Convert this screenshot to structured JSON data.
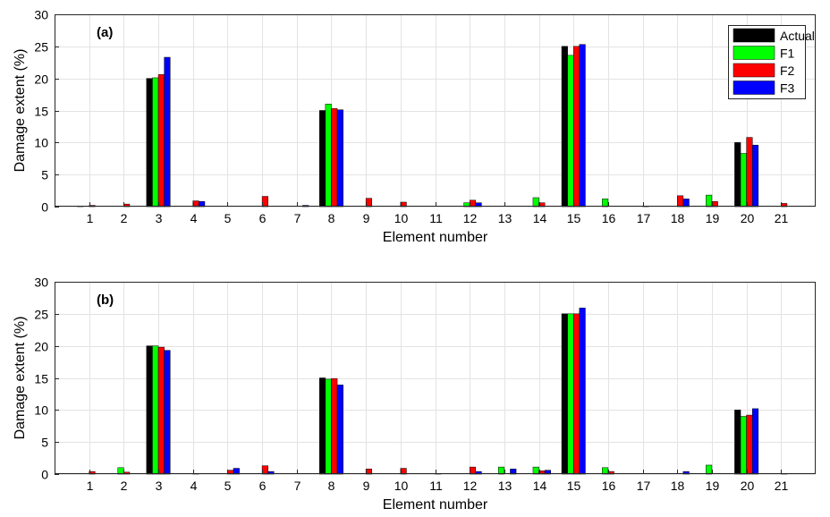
{
  "chart_data": [
    {
      "type": "bar",
      "panel_label": "(a)",
      "xlabel": "Element number",
      "ylabel": "Damage extent (%)",
      "ylim": [
        0,
        30
      ],
      "yticks": [
        0,
        5,
        10,
        15,
        20,
        25,
        30
      ],
      "grid": true,
      "legend": "top-right",
      "categories": [
        "1",
        "2",
        "3",
        "4",
        "5",
        "6",
        "7",
        "8",
        "9",
        "10",
        "11",
        "12",
        "13",
        "14",
        "15",
        "16",
        "17",
        "18",
        "19",
        "20",
        "21"
      ],
      "series": [
        {
          "name": "Actual",
          "color": "#000000",
          "values": [
            0.1,
            0,
            20,
            0,
            0,
            0,
            0,
            15,
            0,
            0,
            0,
            0,
            0,
            0,
            25,
            0,
            0,
            0,
            0,
            10,
            0
          ]
        },
        {
          "name": "F1",
          "color": "#00ff00",
          "values": [
            0,
            0,
            20.1,
            0,
            0,
            0,
            0,
            16,
            0,
            0,
            0,
            0.6,
            0,
            1.4,
            23.6,
            1.2,
            0,
            0,
            1.8,
            8.3,
            0
          ]
        },
        {
          "name": "F2",
          "color": "#ff0000",
          "values": [
            0.2,
            0.4,
            20.6,
            0.9,
            0,
            1.6,
            0,
            15.3,
            1.3,
            0.7,
            0,
            1.0,
            0,
            0.6,
            25,
            0,
            0.1,
            1.7,
            0.8,
            10.8,
            0.5
          ]
        },
        {
          "name": "F3",
          "color": "#0000ff",
          "values": [
            0,
            0,
            23.3,
            0.8,
            0,
            0,
            0.2,
            15.1,
            0,
            0,
            0,
            0.6,
            0,
            0,
            25.3,
            0,
            0,
            1.2,
            0,
            9.6,
            0
          ]
        }
      ]
    },
    {
      "type": "bar",
      "panel_label": "(b)",
      "xlabel": "Element number",
      "ylabel": "Damage extent (%)",
      "ylim": [
        0,
        30
      ],
      "yticks": [
        0,
        5,
        10,
        15,
        20,
        25,
        30
      ],
      "grid": true,
      "categories": [
        "1",
        "2",
        "3",
        "4",
        "5",
        "6",
        "7",
        "8",
        "9",
        "10",
        "11",
        "12",
        "13",
        "14",
        "15",
        "16",
        "17",
        "18",
        "19",
        "20",
        "21"
      ],
      "series": [
        {
          "name": "Actual",
          "color": "#000000",
          "values": [
            0,
            0,
            20,
            0,
            0,
            0,
            0,
            15,
            0,
            0,
            0,
            0,
            0,
            0,
            25,
            0,
            0,
            0,
            0,
            10,
            0
          ]
        },
        {
          "name": "F1",
          "color": "#00ff00",
          "values": [
            0,
            1.0,
            20,
            0,
            0,
            0,
            0,
            14.8,
            0,
            0,
            0,
            0,
            1.1,
            1.1,
            25,
            1.0,
            0,
            0,
            1.4,
            9.0,
            0
          ]
        },
        {
          "name": "F2",
          "color": "#ff0000",
          "values": [
            0.4,
            0.3,
            19.8,
            0.1,
            0.6,
            1.3,
            0,
            14.9,
            0.8,
            0.9,
            0.1,
            1.1,
            0,
            0.5,
            25,
            0.4,
            0,
            0,
            0,
            9.2,
            0.1
          ]
        },
        {
          "name": "F3",
          "color": "#0000ff",
          "values": [
            0,
            0,
            19.3,
            0,
            0.9,
            0.4,
            0,
            13.9,
            0,
            0,
            0,
            0.4,
            0.8,
            0.6,
            25.9,
            0,
            0,
            0.4,
            0,
            10.2,
            0
          ]
        }
      ]
    }
  ]
}
